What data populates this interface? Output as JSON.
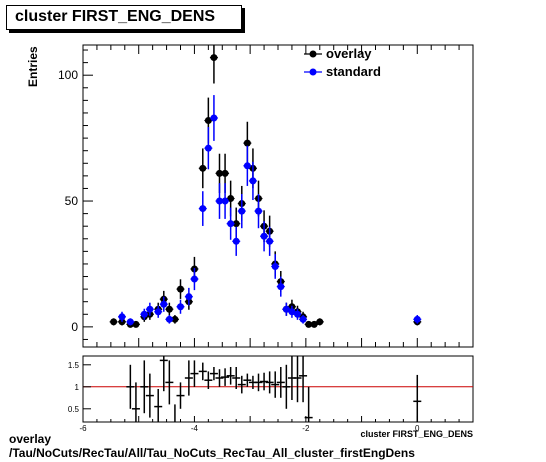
{
  "title": "cluster FIRST_ENG_DENS",
  "footer": {
    "line1": "overlay",
    "line2": "/Tau/NoCuts/RecTau/All/Tau_NoCuts_RecTau_All_cluster_firstEngDens"
  },
  "chart_data": [
    {
      "type": "scatter",
      "ylabel": "Entries",
      "xlim": [
        -6,
        1
      ],
      "ylim": [
        -8,
        112
      ],
      "y_ticks": [
        0,
        50,
        100
      ],
      "legend_position": "top-right",
      "colors": {
        "overlay": "#000000",
        "standard": "#0000ff"
      },
      "series": [
        {
          "name": "overlay",
          "points": [
            [
              -5.45,
              2,
              1.4
            ],
            [
              -5.3,
              2,
              1.4
            ],
            [
              -5.15,
              1,
              1.0
            ],
            [
              -5.05,
              1,
              1.0
            ],
            [
              -4.9,
              4,
              2.0
            ],
            [
              -4.8,
              5,
              2.2
            ],
            [
              -4.65,
              7,
              2.6
            ],
            [
              -4.55,
              11,
              3.3
            ],
            [
              -4.45,
              7,
              2.6
            ],
            [
              -4.35,
              3,
              1.7
            ],
            [
              -4.25,
              15,
              3.9
            ],
            [
              -4.1,
              10,
              3.2
            ],
            [
              -4.0,
              23,
              4.8
            ],
            [
              -3.85,
              63,
              7.9
            ],
            [
              -3.75,
              82,
              9.1
            ],
            [
              -3.65,
              107,
              10.3
            ],
            [
              -3.55,
              61,
              7.8
            ],
            [
              -3.45,
              61,
              7.8
            ],
            [
              -3.35,
              51,
              7.1
            ],
            [
              -3.25,
              41,
              6.4
            ],
            [
              -3.15,
              49,
              7.0
            ],
            [
              -3.05,
              73,
              8.5
            ],
            [
              -2.95,
              63,
              7.9
            ],
            [
              -2.85,
              51,
              7.1
            ],
            [
              -2.75,
              40,
              6.3
            ],
            [
              -2.65,
              38,
              6.2
            ],
            [
              -2.55,
              25,
              5.0
            ],
            [
              -2.45,
              18,
              4.2
            ],
            [
              -2.35,
              7,
              2.6
            ],
            [
              -2.25,
              8,
              2.8
            ],
            [
              -2.15,
              6,
              2.4
            ],
            [
              -2.05,
              4,
              2.0
            ],
            [
              -1.95,
              1,
              1.0
            ],
            [
              -1.85,
              1,
              1.0
            ],
            [
              -1.75,
              2,
              1.4
            ],
            [
              0.0,
              2,
              1.4
            ]
          ]
        },
        {
          "name": "standard",
          "points": [
            [
              -5.3,
              4,
              2.0
            ],
            [
              -5.15,
              2,
              1.4
            ],
            [
              -4.9,
              5,
              2.2
            ],
            [
              -4.8,
              7,
              2.6
            ],
            [
              -4.65,
              6,
              2.4
            ],
            [
              -4.55,
              9,
              3.0
            ],
            [
              -4.45,
              3,
              1.7
            ],
            [
              -4.25,
              8,
              2.8
            ],
            [
              -4.1,
              12,
              3.5
            ],
            [
              -4.0,
              19,
              4.4
            ],
            [
              -3.85,
              47,
              6.9
            ],
            [
              -3.75,
              71,
              8.4
            ],
            [
              -3.65,
              83,
              9.1
            ],
            [
              -3.55,
              50,
              7.1
            ],
            [
              -3.45,
              50,
              7.1
            ],
            [
              -3.35,
              41,
              6.4
            ],
            [
              -3.25,
              34,
              5.8
            ],
            [
              -3.15,
              46,
              6.8
            ],
            [
              -3.05,
              64,
              8.0
            ],
            [
              -2.95,
              58,
              7.6
            ],
            [
              -2.85,
              46,
              6.8
            ],
            [
              -2.75,
              36,
              6.0
            ],
            [
              -2.65,
              34,
              5.8
            ],
            [
              -2.55,
              24,
              4.9
            ],
            [
              -2.45,
              16,
              4.0
            ],
            [
              -2.35,
              7,
              2.6
            ],
            [
              -2.25,
              6,
              2.4
            ],
            [
              -2.15,
              5,
              2.2
            ],
            [
              -2.05,
              3,
              1.7
            ],
            [
              0.0,
              3,
              1.7
            ]
          ]
        }
      ]
    },
    {
      "type": "scatter",
      "xlabel": "cluster FIRST_ENG_DENS",
      "xlim": [
        -6,
        1
      ],
      "ylim": [
        0.2,
        1.7
      ],
      "x_ticks": [
        -6,
        -4,
        -2,
        0
      ],
      "y_ticks": [
        0.5,
        1,
        1.5
      ],
      "reference_line": 1,
      "reference_line_color": "#cc0000",
      "points": [
        [
          -5.15,
          1.0,
          0.5
        ],
        [
          -5.05,
          0.5,
          0.6
        ],
        [
          -4.9,
          1.0,
          0.6
        ],
        [
          -4.8,
          0.8,
          0.5
        ],
        [
          -4.65,
          0.55,
          0.4
        ],
        [
          -4.55,
          1.6,
          0.7
        ],
        [
          -4.45,
          1.1,
          0.5
        ],
        [
          -4.35,
          0.0,
          0.6
        ],
        [
          -4.25,
          0.8,
          0.3
        ],
        [
          -4.1,
          1.2,
          0.4
        ],
        [
          -4.0,
          1.3,
          0.3
        ],
        [
          -3.85,
          1.35,
          0.2
        ],
        [
          -3.75,
          1.15,
          0.2
        ],
        [
          -3.65,
          1.3,
          0.15
        ],
        [
          -3.55,
          1.2,
          0.2
        ],
        [
          -3.45,
          1.22,
          0.2
        ],
        [
          -3.35,
          1.25,
          0.2
        ],
        [
          -3.25,
          1.2,
          0.25
        ],
        [
          -3.15,
          1.05,
          0.2
        ],
        [
          -3.05,
          1.15,
          0.15
        ],
        [
          -2.95,
          1.1,
          0.15
        ],
        [
          -2.85,
          1.1,
          0.2
        ],
        [
          -2.75,
          1.12,
          0.2
        ],
        [
          -2.65,
          1.1,
          0.25
        ],
        [
          -2.55,
          1.05,
          0.3
        ],
        [
          -2.45,
          1.1,
          0.35
        ],
        [
          -2.35,
          1.0,
          0.5
        ],
        [
          -2.25,
          1.2,
          0.5
        ],
        [
          -2.15,
          1.2,
          0.55
        ],
        [
          -2.05,
          1.25,
          0.6
        ],
        [
          -1.95,
          0.3,
          0.7
        ],
        [
          0.0,
          0.67,
          0.6
        ]
      ]
    }
  ]
}
